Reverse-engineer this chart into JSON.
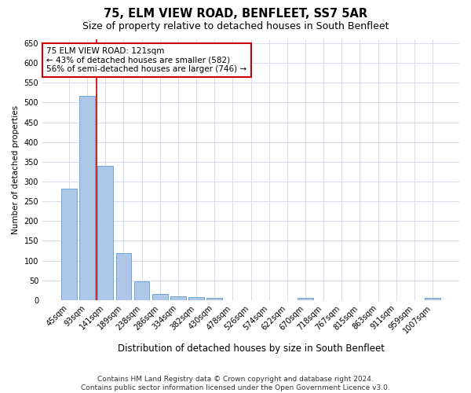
{
  "title": "75, ELM VIEW ROAD, BENFLEET, SS7 5AR",
  "subtitle": "Size of property relative to detached houses in South Benfleet",
  "xlabel": "Distribution of detached houses by size in South Benfleet",
  "ylabel": "Number of detached properties",
  "footnote": "Contains HM Land Registry data © Crown copyright and database right 2024.\nContains public sector information licensed under the Open Government Licence v3.0.",
  "categories": [
    "45sqm",
    "93sqm",
    "141sqm",
    "189sqm",
    "238sqm",
    "286sqm",
    "334sqm",
    "382sqm",
    "430sqm",
    "478sqm",
    "526sqm",
    "574sqm",
    "622sqm",
    "670sqm",
    "718sqm",
    "767sqm",
    "815sqm",
    "863sqm",
    "911sqm",
    "959sqm",
    "1007sqm"
  ],
  "values": [
    283,
    516,
    340,
    120,
    47,
    16,
    10,
    8,
    5,
    0,
    0,
    0,
    0,
    5,
    0,
    0,
    0,
    0,
    0,
    0,
    5
  ],
  "bar_color": "#aec6e8",
  "bar_edge_color": "#5a9fd4",
  "vline_x": 1.5,
  "vline_color": "#cc0000",
  "annotation_line1": "75 ELM VIEW ROAD: 121sqm",
  "annotation_line2": "← 43% of detached houses are smaller (582)",
  "annotation_line3": "56% of semi-detached houses are larger (746) →",
  "annotation_box_color": "#ffffff",
  "annotation_box_edge_color": "#cc0000",
  "annotation_fontsize": 7.5,
  "ylim": [
    0,
    660
  ],
  "yticks": [
    0,
    50,
    100,
    150,
    200,
    250,
    300,
    350,
    400,
    450,
    500,
    550,
    600,
    650
  ],
  "title_fontsize": 10.5,
  "subtitle_fontsize": 9,
  "xlabel_fontsize": 8.5,
  "ylabel_fontsize": 7.5,
  "tick_fontsize": 7,
  "footnote_fontsize": 6.5,
  "background_color": "#ffffff",
  "grid_color": "#d0d8e8",
  "fig_width": 6.0,
  "fig_height": 5.0,
  "dpi": 100
}
